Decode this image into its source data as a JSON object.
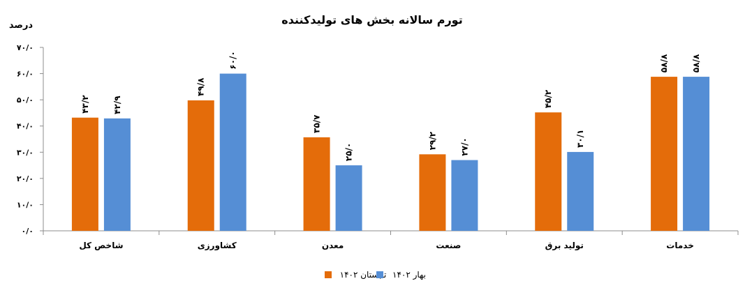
{
  "chart_data": {
    "type": "bar",
    "title": "تورم سالانه بخش های تولیدکننده",
    "ylabel": "درصد",
    "xlabel": "",
    "ylim": [
      0,
      70
    ],
    "yticks": [
      0,
      10,
      20,
      30,
      40,
      50,
      60,
      70
    ],
    "ytick_labels": [
      "۰/۰",
      "۱۰/۰",
      "۲۰/۰",
      "۳۰/۰",
      "۴۰/۰",
      "۵۰/۰",
      "۶۰/۰",
      "۷۰/۰"
    ],
    "categories": [
      "شاخص کل",
      "کشاورزی",
      "معدن",
      "صنعت",
      "تولید برق",
      "خدمات"
    ],
    "series": [
      {
        "name": "تابستان ۱۴۰۲",
        "color": "#E46C0A",
        "values": [
          43.2,
          49.8,
          35.7,
          29.2,
          45.2,
          58.8
        ],
        "labels": [
          "۴۳/۲",
          "۴۹/۸",
          "۳۵/۷",
          "۲۹/۲",
          "۴۵/۲",
          "۵۸/۸"
        ]
      },
      {
        "name": "بهار ۱۴۰۲",
        "color": "#558ED5",
        "values": [
          42.9,
          60.0,
          25.0,
          27.0,
          30.1,
          58.8
        ],
        "labels": [
          "۴۲/۹",
          "۶۰/۰",
          "۲۵/۰",
          "۲۷/۰",
          "۳۰/۱",
          "۵۸/۸"
        ]
      }
    ],
    "grid": false,
    "legend_position": "bottom"
  }
}
